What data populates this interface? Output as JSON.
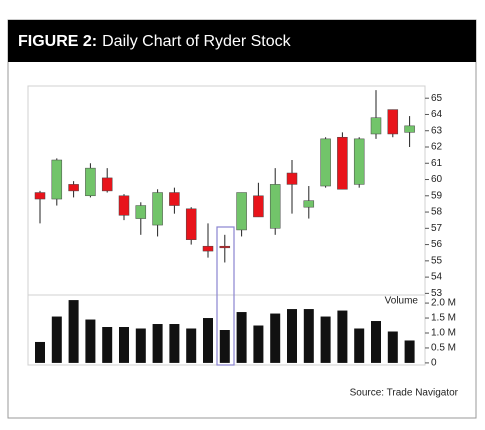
{
  "figure": {
    "label": "FIGURE 2:",
    "title": "Daily Chart of Ryder Stock",
    "source": "Source: Trade Navigator"
  },
  "chart_data": [
    {
      "type": "candlestick",
      "open": [
        59.2,
        58.8,
        59.7,
        59.0,
        60.1,
        59.0,
        57.6,
        57.2,
        59.2,
        58.2,
        55.9,
        55.9,
        56.9,
        59.0,
        57.0,
        60.4,
        58.3,
        59.6,
        62.6,
        59.7,
        62.8,
        64.3,
        62.9
      ],
      "high": [
        59.3,
        61.3,
        59.9,
        61.0,
        60.7,
        59.1,
        58.6,
        59.4,
        59.5,
        58.3,
        57.3,
        56.6,
        59.2,
        59.8,
        60.7,
        61.2,
        59.6,
        62.6,
        62.9,
        62.6,
        65.5,
        64.3,
        63.9
      ],
      "low": [
        57.3,
        58.4,
        58.9,
        58.9,
        59.2,
        57.5,
        56.6,
        56.5,
        57.9,
        56.0,
        55.2,
        54.9,
        56.5,
        57.7,
        56.6,
        57.9,
        57.6,
        59.5,
        59.4,
        59.5,
        62.5,
        62.6,
        62.0
      ],
      "close": [
        58.8,
        61.2,
        59.3,
        60.7,
        59.3,
        57.8,
        58.4,
        59.2,
        58.4,
        56.3,
        55.6,
        55.8,
        59.2,
        57.7,
        59.7,
        59.7,
        58.7,
        62.5,
        59.4,
        62.5,
        63.8,
        62.8,
        63.3
      ],
      "up_color": "#72c46a",
      "down_color": "#e8141b",
      "ylim": [
        52.9,
        65.75
      ],
      "yticks": [
        53,
        54,
        55,
        56,
        57,
        58,
        59,
        60,
        61,
        62,
        63,
        64,
        65
      ]
    },
    {
      "type": "bar",
      "label": "Volume",
      "values": [
        0.7,
        1.55,
        2.1,
        1.45,
        1.2,
        1.2,
        1.15,
        1.3,
        1.3,
        1.15,
        1.5,
        1.1,
        1.7,
        1.25,
        1.65,
        1.8,
        1.8,
        1.55,
        1.75,
        1.15,
        1.4,
        1.05,
        0.75
      ],
      "color": "#111111",
      "ylim": [
        -0.07,
        2.27
      ],
      "yticks": [
        0,
        {
          "value": 0.5,
          "label": "0.5 M"
        },
        {
          "value": 1.0,
          "label": "1.0 M"
        },
        {
          "value": 1.5,
          "label": "1.5 M"
        },
        {
          "value": 2.0,
          "label": "2.0 M"
        }
      ]
    }
  ]
}
